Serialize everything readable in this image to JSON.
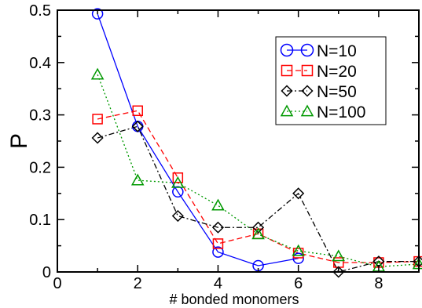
{
  "chart_data": {
    "type": "line",
    "title": "",
    "xlabel": "# bonded monomers",
    "ylabel": "P",
    "xlim": [
      0,
      9
    ],
    "ylim": [
      0,
      0.5
    ],
    "x_ticks": [
      "0",
      "2",
      "4",
      "6",
      "8"
    ],
    "y_ticks": [
      "0",
      "0.1",
      "0.2",
      "0.3",
      "0.4",
      "0.5"
    ],
    "legend_position": "top-right",
    "grid": false,
    "series": [
      {
        "name": "N=10",
        "color": "#0000ff",
        "marker": "circle",
        "line_style": "solid",
        "x": [
          1,
          2,
          3,
          4,
          5,
          6
        ],
        "y": [
          0.493,
          0.278,
          0.153,
          0.038,
          0.012,
          0.026
        ]
      },
      {
        "name": "N=20",
        "color": "#ff0000",
        "marker": "square",
        "line_style": "dashed",
        "x": [
          1,
          2,
          3,
          4,
          5,
          6,
          7,
          8,
          9
        ],
        "y": [
          0.292,
          0.308,
          0.18,
          0.054,
          0.073,
          0.036,
          0.018,
          0.018,
          0.02
        ]
      },
      {
        "name": "N=50",
        "color": "#000000",
        "marker": "diamond",
        "line_style": "dashdot",
        "x": [
          1,
          2,
          3,
          4,
          5,
          6,
          7,
          8,
          9
        ],
        "y": [
          0.256,
          0.278,
          0.107,
          0.085,
          0.085,
          0.15,
          0.0,
          0.02,
          0.02
        ]
      },
      {
        "name": "N=100",
        "color": "#009900",
        "marker": "triangle",
        "line_style": "dotted",
        "x": [
          1,
          2,
          3,
          4,
          5,
          6,
          7,
          8,
          9
        ],
        "y": [
          0.377,
          0.175,
          0.17,
          0.127,
          0.072,
          0.04,
          0.03,
          0.01,
          0.015
        ]
      }
    ]
  }
}
